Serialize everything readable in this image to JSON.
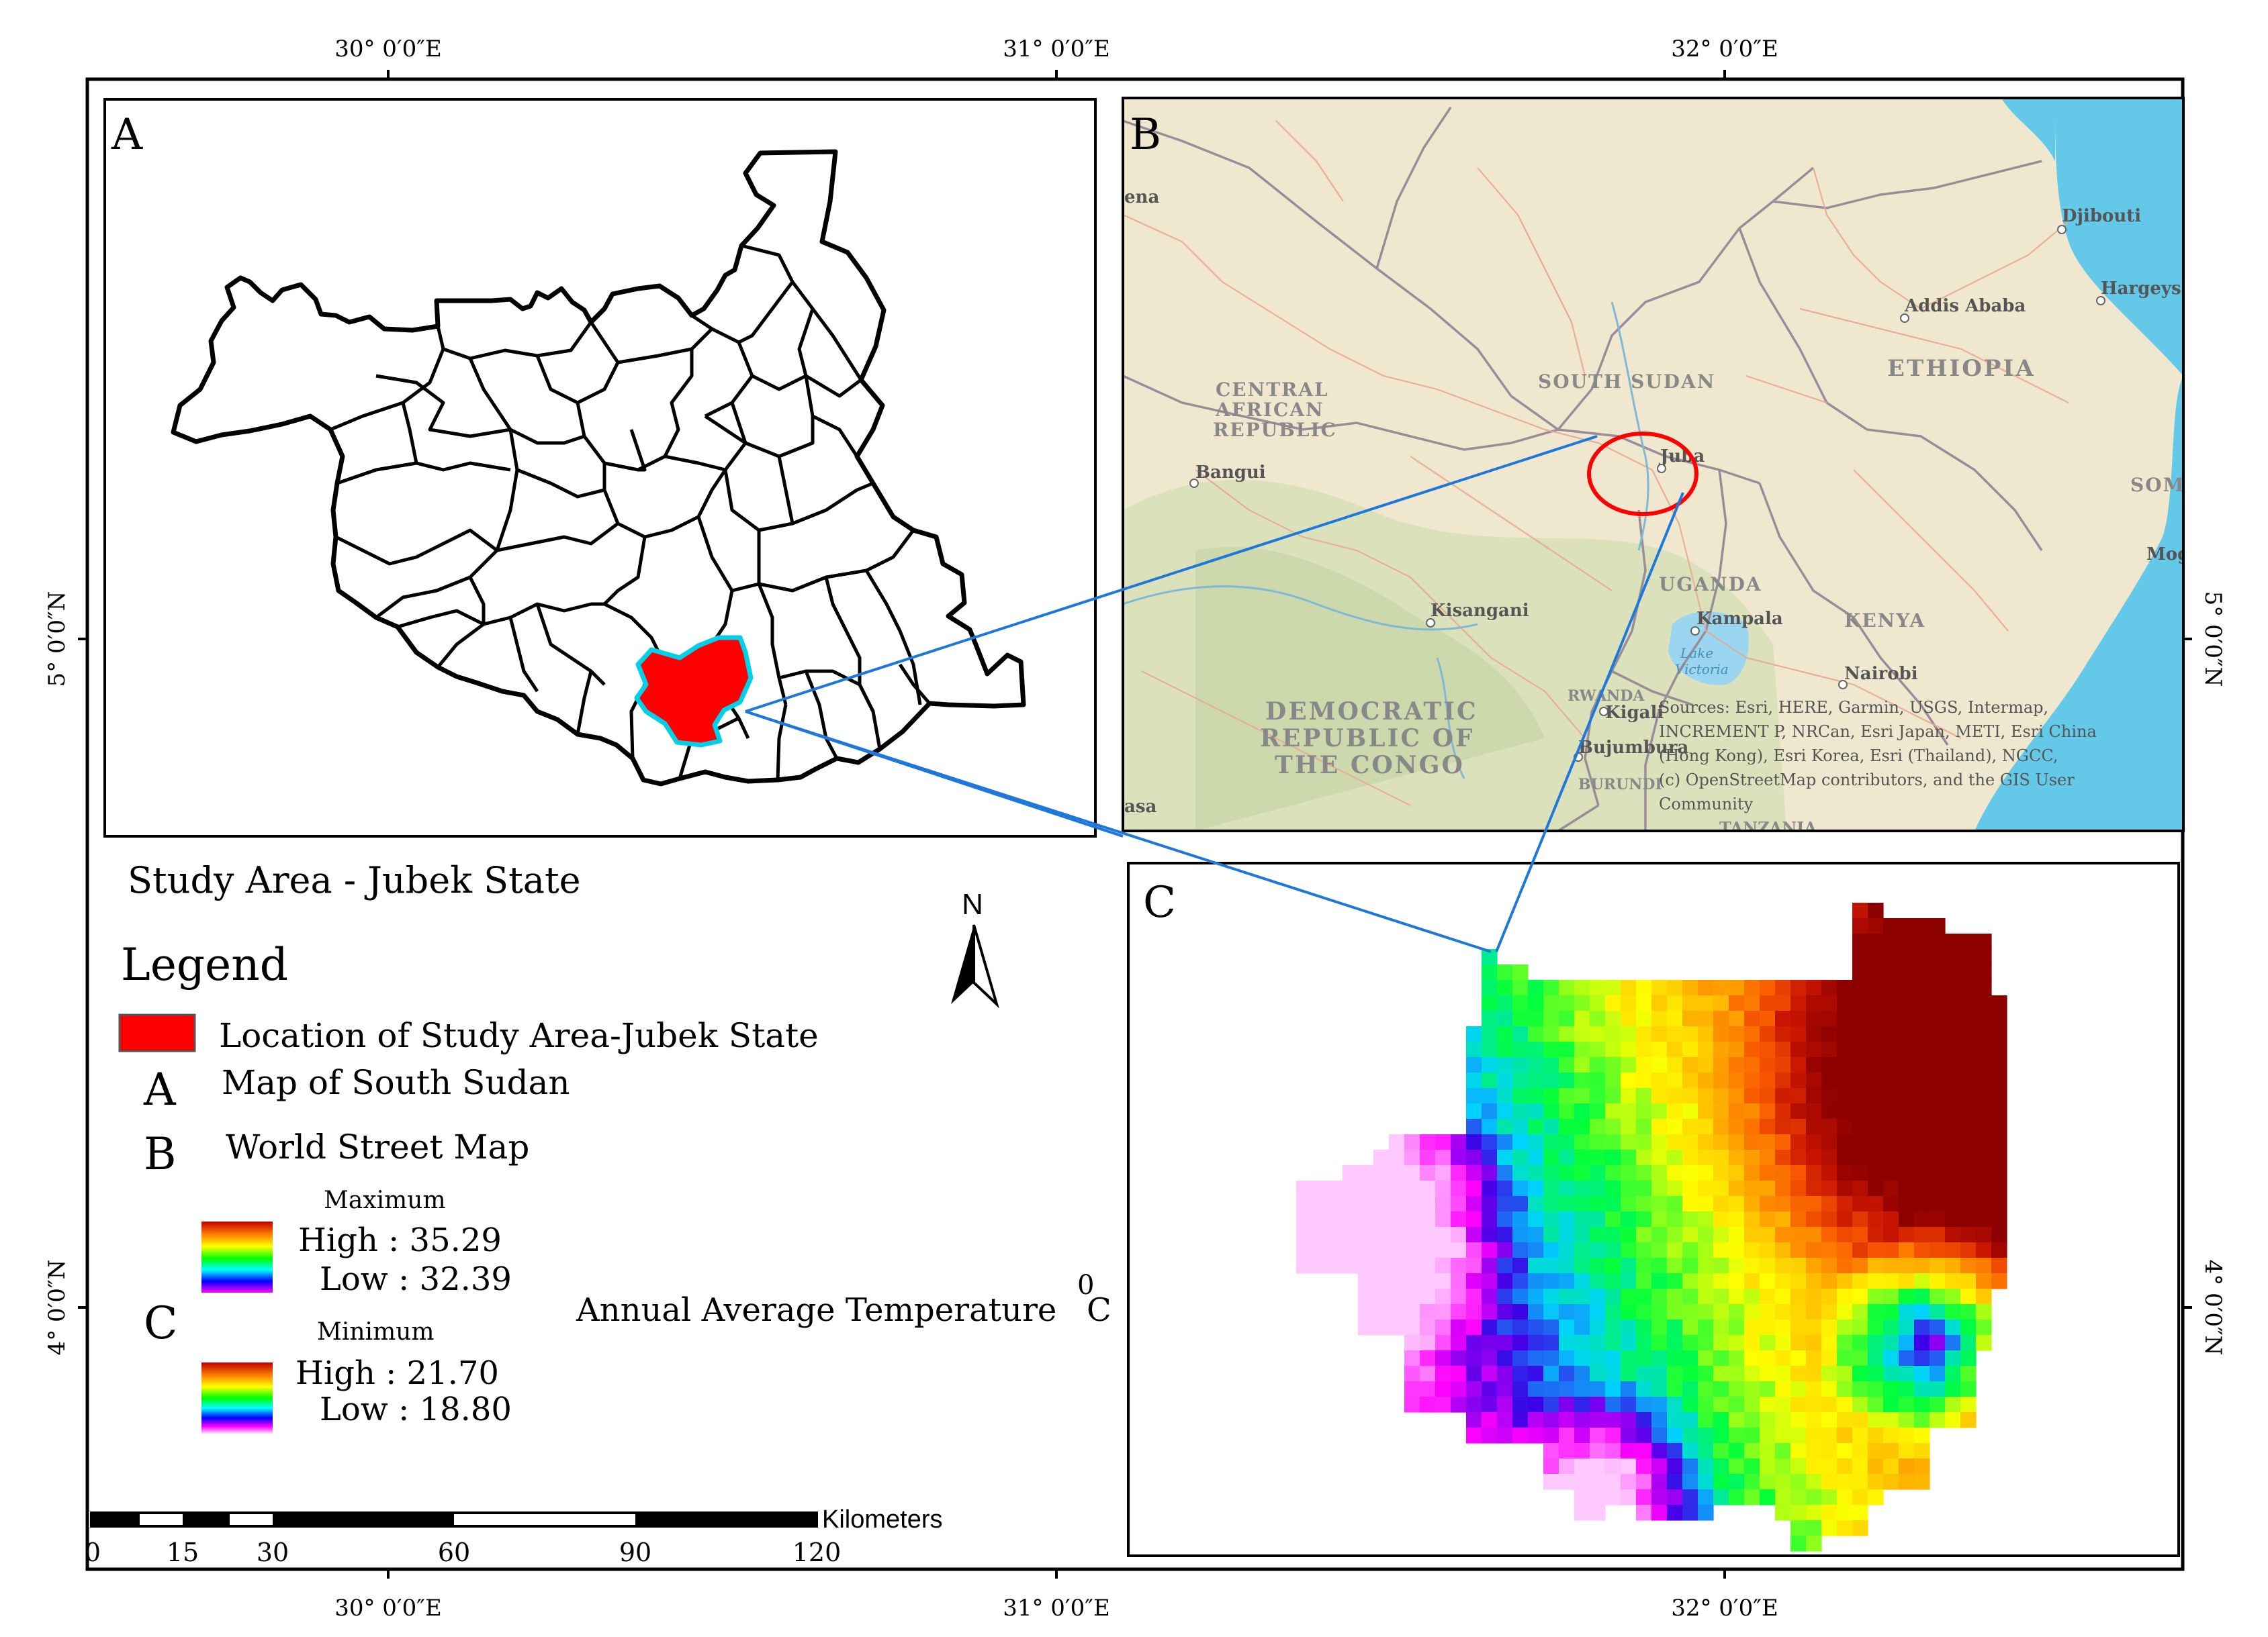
{
  "coordinates": {
    "top_labels": [
      "30° 0′0″E",
      "31° 0′0″E",
      "32° 0′0″E"
    ],
    "bottom_labels": [
      "30° 0′0″E",
      "31° 0′0″E",
      "32° 0′0″E"
    ],
    "left_labels": [
      "5° 0′0″N",
      "4° 0′0″N"
    ],
    "right_labels": [
      "5° 0′0″N",
      "4° 0′0″N"
    ]
  },
  "panels": {
    "a": {
      "letter": "A"
    },
    "b": {
      "letter": "B",
      "place_labels": [
        "ena",
        "Djibouti",
        "Hargeysa",
        "Addis Ababa",
        "ETHIOPIA",
        "SOUTH SUDAN",
        "CENTRAL",
        "AFRICAN",
        "REPUBLIC",
        "Bangui",
        "Juba",
        "SOMAL",
        "Mogad",
        "UGANDA",
        "Kisangani",
        "Kampala",
        "KENYA",
        "Lake",
        "Victoria",
        "Nairobi",
        "RWANDA",
        "Kigali",
        "DEMOCRATIC",
        "REPUBLIC OF",
        "THE CONGO",
        "Bujumbura",
        "BURUNDI",
        "asa",
        "TANZANIA"
      ],
      "attribution": [
        "Sources: Esri, HERE, Garmin, USGS, Intermap,",
        "INCREMENT P, NRCan, Esri Japan, METI, Esri China",
        "(Hong Kong), Esri Korea, Esri (Thailand), NGCC,",
        "(c) OpenStreetMap contributors, and the GIS User",
        "Community"
      ]
    },
    "c": {
      "letter": "C"
    }
  },
  "title": "Study Area - Jubek State",
  "north_arrow": {
    "label": "N",
    "icon": "north-arrow-icon"
  },
  "legend": {
    "heading": "Legend",
    "study_area_label": "Location of Study Area-Jubek State",
    "study_area_color": "#ff0000",
    "study_area_outline": "#00d0e8",
    "a_letter": "A",
    "a_label": "Map of South Sudan",
    "b_letter": "B",
    "b_label": "World Street Map",
    "max_title": "Maximum",
    "max_high": "High : 35.29",
    "max_low": "Low : 32.39",
    "c_letter": "C",
    "min_title": "Minimum",
    "min_high": "High : 21.70",
    "min_low": "Low : 18.80",
    "temp_label": "Annual Average Temperature",
    "temp_unit_sup": "0",
    "temp_unit": "C"
  },
  "scale_bar": {
    "unit": "Kilometers",
    "ticks": [
      "0",
      "15",
      "30",
      "60",
      "90",
      "120"
    ]
  },
  "colors": {
    "frame": "#000000",
    "connector": "#1e78dc",
    "juba_circle": "#ff0000",
    "basemap": "#efe8cf",
    "water": "#64c8e8"
  }
}
